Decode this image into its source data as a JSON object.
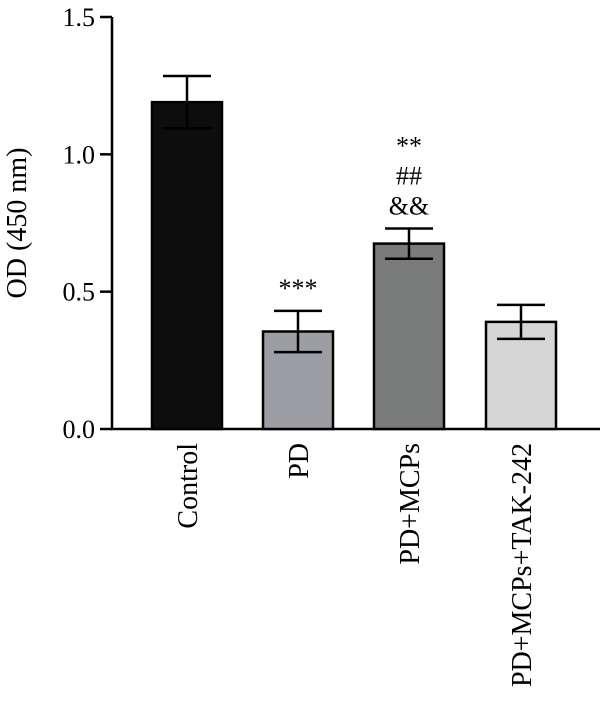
{
  "chart_data": {
    "type": "bar",
    "title": "",
    "xlabel": "",
    "ylabel": "OD (450 nm)",
    "ylim": [
      0.0,
      1.5
    ],
    "yticks": [
      "0.0",
      "0.5",
      "1.0",
      "1.5"
    ],
    "grid": false,
    "categories": [
      "Control",
      "PD",
      "PD+MCPs",
      "PD+MCPs+TAK-242"
    ],
    "values": [
      1.19,
      0.355,
      0.675,
      0.39
    ],
    "errors": [
      0.095,
      0.075,
      0.055,
      0.062
    ],
    "colors": [
      "#0d0d0d",
      "#9c9ea3",
      "#7a7c7b",
      "#d6d6d6"
    ],
    "annotations": [
      [],
      [
        "***"
      ],
      [
        "&&",
        "##",
        "**"
      ],
      []
    ]
  }
}
